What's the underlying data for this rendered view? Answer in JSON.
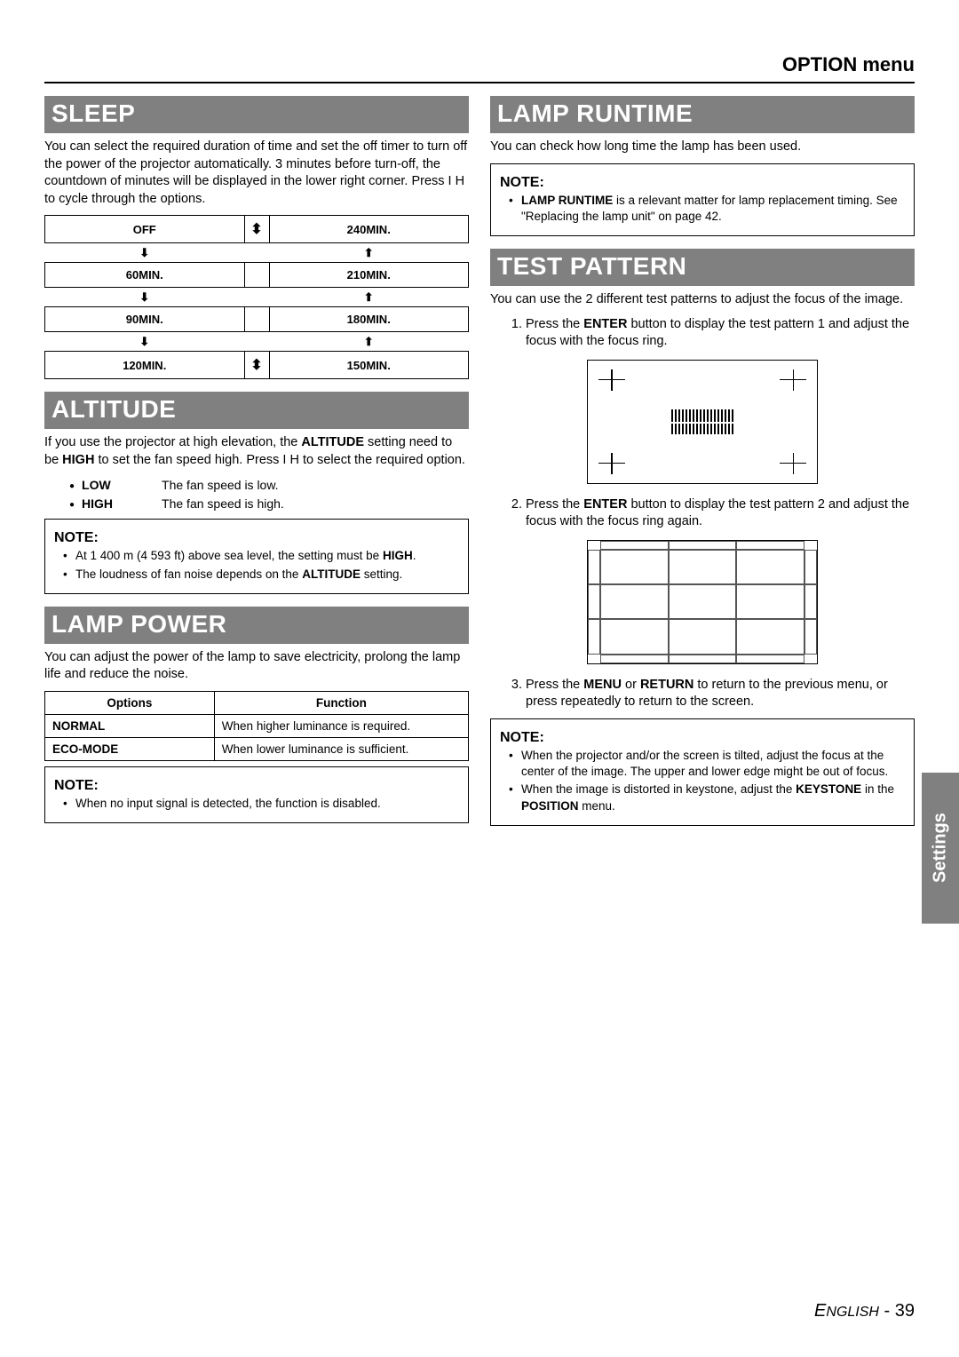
{
  "header": {
    "title": "OPTION menu"
  },
  "side_tab": "Settings",
  "footer": {
    "lang": "ENGLISH",
    "sep": " - ",
    "page": "39"
  },
  "sleep": {
    "title": "SLEEP",
    "body": "You can select the required duration of time and set the off timer to turn off the power of the projector automatically. 3 minutes before turn-off, the countdown of minutes will be displayed in the lower right corner. Press I   H  to cycle through the options.",
    "cells": {
      "r0c0": "OFF",
      "r0c2": "240MIN.",
      "r1c0": "60MIN.",
      "r1c2": "210MIN.",
      "r2c0": "90MIN.",
      "r2c2": "180MIN.",
      "r3c0": "120MIN.",
      "r3c2": "150MIN."
    }
  },
  "altitude": {
    "title": "ALTITUDE",
    "body_pre": "If you use the projector at high elevation, the ",
    "body_bold1": "ALTITUDE",
    "body_mid": " setting need to be ",
    "body_bold2": "HIGH",
    "body_post": " to set the fan speed high. Press I   H  to select the required option.",
    "opts": [
      {
        "label": "LOW",
        "desc": "The fan speed is low."
      },
      {
        "label": "HIGH",
        "desc": "The fan speed is high."
      }
    ],
    "note_title": "NOTE:",
    "notes": [
      {
        "pre": "At 1 400 m (4 593 ft) above sea level, the setting must be ",
        "bold": "HIGH",
        "post": "."
      },
      {
        "pre": "The loudness of fan noise depends on the ",
        "bold": "ALTITUDE",
        "post": " setting."
      }
    ]
  },
  "lamp_power": {
    "title": "LAMP POWER",
    "body": "You can adjust the power of the lamp to save electricity, prolong the lamp life and reduce the noise.",
    "table": {
      "headers": [
        "Options",
        "Function"
      ],
      "rows": [
        {
          "opt": "NORMAL",
          "fn": "When higher luminance is required."
        },
        {
          "opt": "ECO-MODE",
          "fn": "When lower luminance is sufficient."
        }
      ]
    },
    "note_title": "NOTE:",
    "notes": [
      {
        "pre": "When no input signal is detected, the function is disabled.",
        "bold": "",
        "post": ""
      }
    ]
  },
  "lamp_runtime": {
    "title": "LAMP RUNTIME",
    "body": "You can check how long time the lamp has been used.",
    "note_title": "NOTE:",
    "notes": [
      {
        "bold": "LAMP RUNTIME",
        "post": " is a relevant matter for lamp replacement timing. See \"Replacing the lamp unit\" on page 42."
      }
    ]
  },
  "test_pattern": {
    "title": "TEST PATTERN",
    "body": "You can use the 2 different test patterns to adjust the focus of the image.",
    "steps": [
      {
        "pre": "Press the ",
        "bold": "ENTER",
        "post": " button to display the test pattern 1 and adjust the focus with the focus ring."
      },
      {
        "pre": "Press the ",
        "bold": "ENTER",
        "post": " button to display the test pattern 2 and adjust the focus with the focus ring again."
      },
      {
        "pre": "Press the ",
        "bold": "MENU",
        "mid": " or ",
        "bold2": "RETURN",
        "post": " to return to the previous menu, or press repeatedly to return to the screen."
      }
    ],
    "note_title": "NOTE:",
    "notes": [
      {
        "pre": "When the projector and/or the screen is tilted, adjust the focus at the center of the image. The upper and lower edge might be out of focus.",
        "bold": "",
        "post": ""
      },
      {
        "pre": "When the image is distorted in keystone, adjust the ",
        "bold": "KEYSTONE",
        "mid": " in the ",
        "bold2": "POSITION",
        "post": " menu."
      }
    ]
  }
}
